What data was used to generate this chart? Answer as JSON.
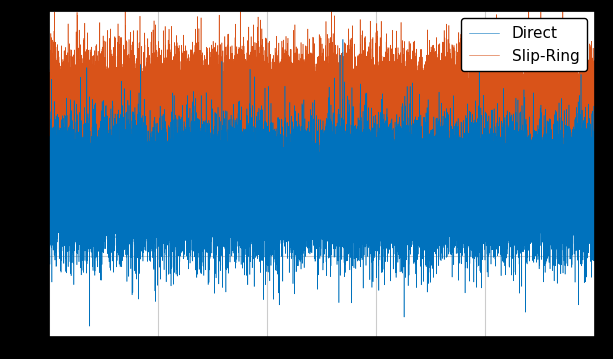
{
  "title": "",
  "xlabel": "",
  "ylabel": "",
  "direct_color": "#0072BD",
  "slipring_color": "#D95319",
  "legend_labels": [
    "Direct",
    "Slip-Ring"
  ],
  "n_points": 50000,
  "direct_mean": -0.15,
  "direct_std": 0.28,
  "slipring_mean": 0.55,
  "slipring_std": 0.28,
  "direct_spike_prob": 0.003,
  "direct_spike_std": 0.8,
  "slipring_spike_prob": 0.003,
  "slipring_spike_std": 0.6,
  "ylim": [
    -1.6,
    1.6
  ],
  "xlim": [
    0,
    50000
  ],
  "grid_color": "#c0c0c0",
  "background_color": "#ffffff",
  "outer_background": "#000000",
  "legend_fontsize": 11,
  "figsize": [
    6.13,
    3.59
  ],
  "dpi": 100,
  "seed": 42,
  "n_xticks": 5,
  "n_yticks": 5
}
